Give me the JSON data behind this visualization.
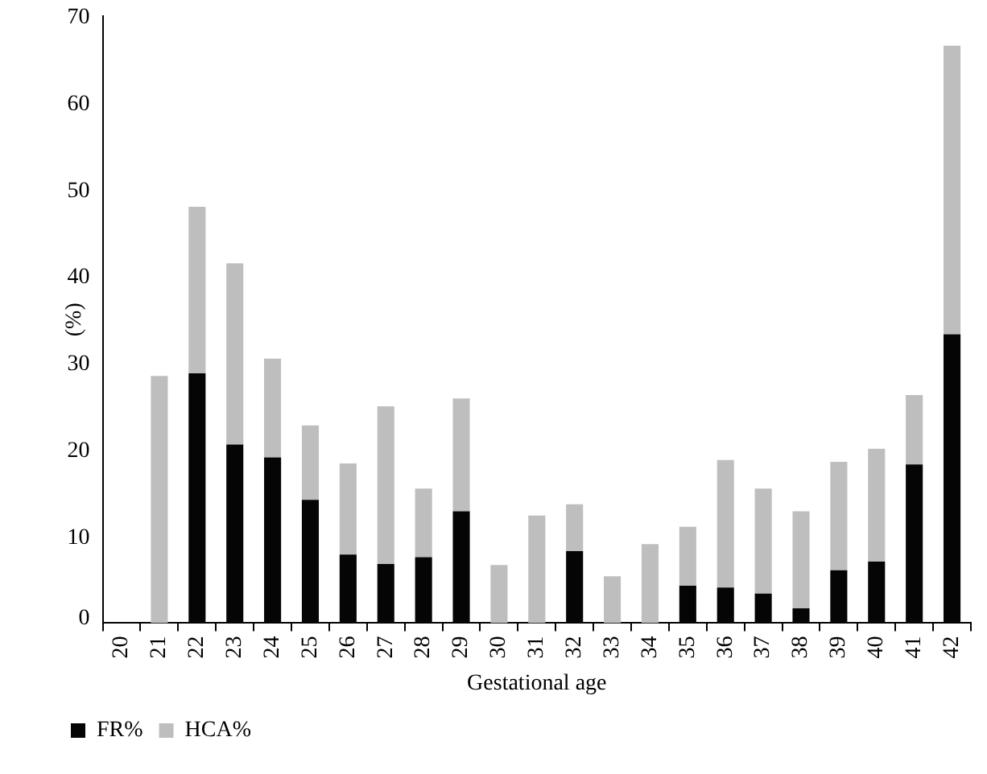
{
  "chart_data": {
    "type": "bar",
    "stacked": true,
    "xlabel": "Gestational age",
    "ylabel": "(%)",
    "categories": [
      "20",
      "21",
      "22",
      "23",
      "24",
      "25",
      "26",
      "27",
      "28",
      "29",
      "30",
      "31",
      "32",
      "33",
      "34",
      "35",
      "36",
      "37",
      "38",
      "39",
      "40",
      "41",
      "42"
    ],
    "series": [
      {
        "name": "FR%",
        "color": "#050505",
        "values": [
          0,
          0,
          28.8,
          20.6,
          19.1,
          14.2,
          7.9,
          6.8,
          7.6,
          12.9,
          0,
          0,
          8.3,
          0,
          0,
          4.3,
          4.1,
          3.4,
          1.7,
          6.1,
          7.1,
          18.3,
          33.3
        ]
      },
      {
        "name": "HCA%",
        "color": "#bebebe",
        "values": [
          0,
          28.5,
          19.2,
          20.9,
          11.4,
          8.6,
          10.5,
          18.2,
          7.9,
          13.0,
          6.7,
          12.4,
          5.4,
          5.4,
          9.1,
          6.8,
          14.7,
          12.1,
          11.2,
          12.5,
          13.0,
          8.0,
          33.3
        ]
      }
    ],
    "ylim": [
      0,
      70
    ],
    "yticks": [
      0,
      10,
      20,
      30,
      40,
      50,
      60,
      70
    ],
    "grid": false,
    "legend": "bottom left"
  }
}
